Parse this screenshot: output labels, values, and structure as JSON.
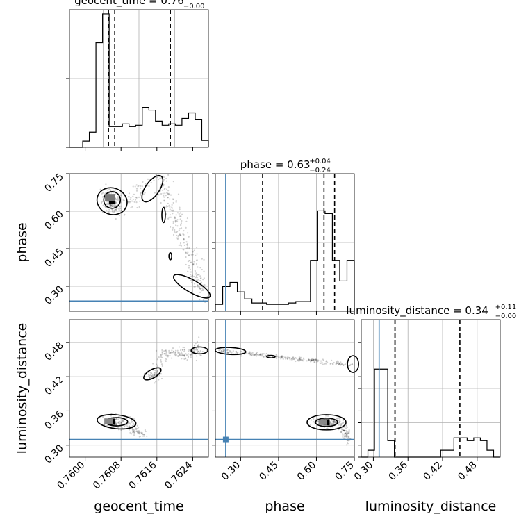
{
  "chart_data": {
    "type": "corner",
    "truth_color": "#4682b4",
    "line_color": "#000000",
    "parameters": [
      {
        "name": "geocent_time",
        "label": "geocent_time",
        "range": [
          0.75965,
          0.76275
        ],
        "ticks": [
          0.76,
          0.7608,
          0.7616,
          0.7624
        ],
        "tick_labels": [
          "0.7600",
          "0.7608",
          "0.7616",
          "0.7624"
        ],
        "truth": null,
        "title": {
          "main": "geocent_time = 0.76",
          "sup": "+0.00",
          "sub": "−0.00"
        },
        "quantiles": [
          0.76052,
          0.76066,
          0.7619
        ],
        "hist": [
          0,
          0,
          0.045,
          0.11,
          0.76,
          0.97,
          0.15,
          0.15,
          0.17,
          0.15,
          0.16,
          0.29,
          0.27,
          0.19,
          0.16,
          0.17,
          0.16,
          0.21,
          0.25,
          0.2,
          0.05
        ]
      },
      {
        "name": "phase",
        "label": "phase",
        "range": [
          0.2,
          0.75
        ],
        "ticks": [
          0.3,
          0.45,
          0.6,
          0.75
        ],
        "tick_labels": [
          "0.30",
          "0.45",
          "0.60",
          "0.75"
        ],
        "truth": 0.241,
        "title": {
          "main": "phase = 0.63",
          "sup": "+0.04",
          "sub": "−0.24"
        },
        "quantiles": [
          0.387,
          0.63,
          0.672
        ],
        "hist": [
          0.05,
          0.18,
          0.21,
          0.14,
          0.09,
          0.06,
          0.06,
          0.05,
          0.05,
          0.05,
          0.06,
          0.07,
          0.07,
          0.37,
          0.73,
          0.71,
          0.37,
          0.22,
          0.37
        ]
      },
      {
        "name": "luminosity_distance",
        "label": "luminosity_distance",
        "range": [
          0.279,
          0.52
        ],
        "ticks": [
          0.3,
          0.36,
          0.42,
          0.48
        ],
        "tick_labels": [
          "0.30",
          "0.36",
          "0.42",
          "0.48"
        ],
        "truth": 0.31,
        "title": {
          "main": "luminosity_distance = 0.34",
          "sup": "+0.11",
          "sub": "−0.00"
        },
        "quantiles": [
          0.3375,
          0.3375,
          0.45
        ],
        "hist": [
          0,
          0.05,
          0.64,
          0.64,
          0.12,
          0,
          0,
          0,
          0,
          0,
          0,
          0,
          0.05,
          0.05,
          0.14,
          0.14,
          0.12,
          0.14,
          0.12,
          0.05,
          0
        ]
      }
    ]
  }
}
